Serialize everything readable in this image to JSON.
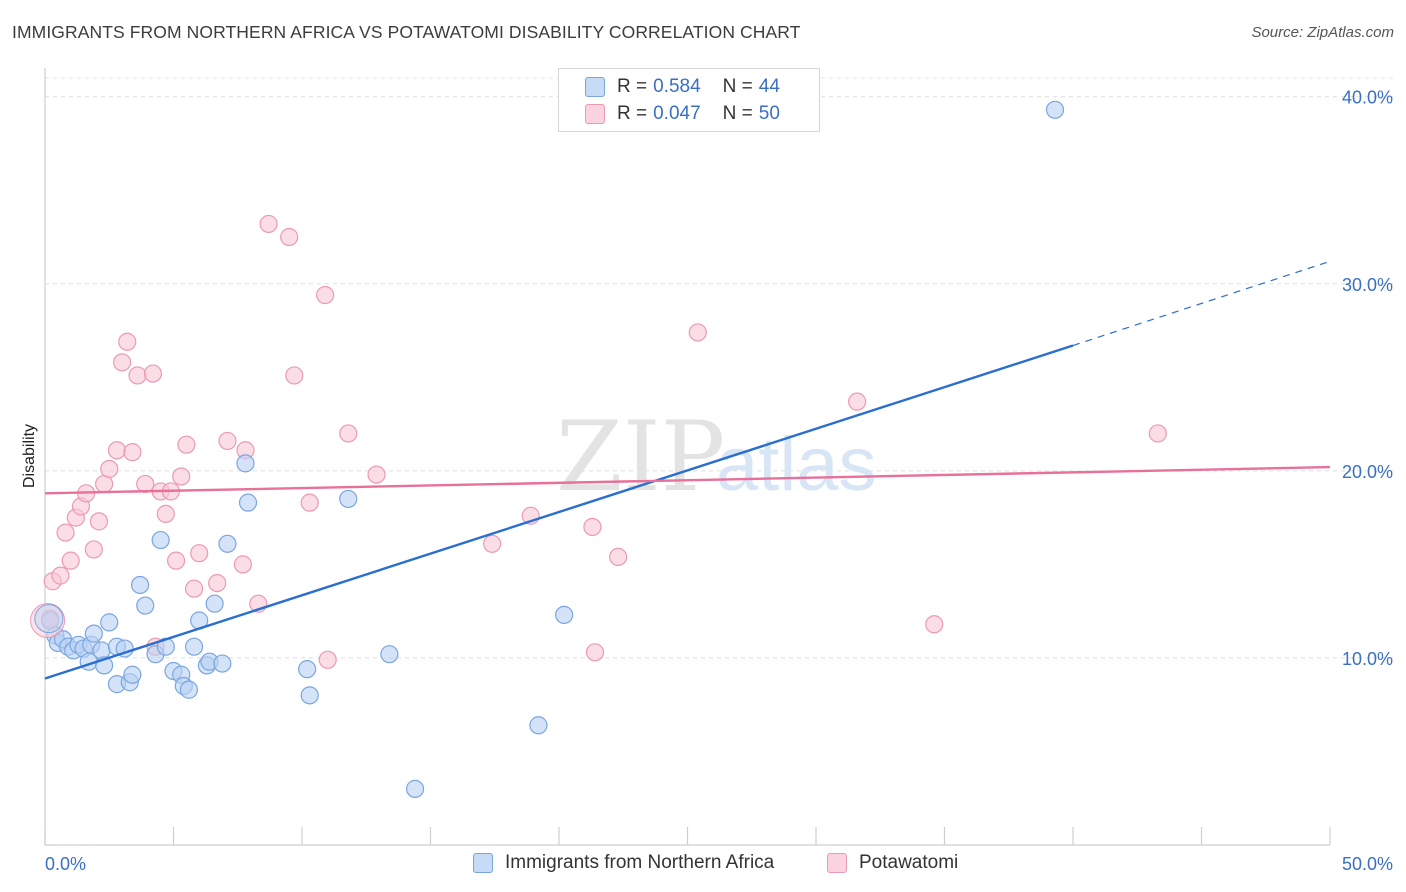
{
  "header": {
    "title": "IMMIGRANTS FROM NORTHERN AFRICA VS POTAWATOMI DISABILITY CORRELATION CHART",
    "source": "Source: ZipAtlas.com"
  },
  "watermark": {
    "zip": "ZIP",
    "atlas": "atlas"
  },
  "legend": {
    "rows": [
      {
        "r_label": "R = ",
        "r_value": "0.584",
        "n_label": "N = ",
        "n_value": "44",
        "color": "#a9c8f2"
      },
      {
        "r_label": "R = ",
        "r_value": "0.047",
        "n_label": "N = ",
        "n_value": "50",
        "color": "#f6b8cb"
      }
    ]
  },
  "colors": {
    "blue_fill": "#b9d2f4",
    "blue_stroke": "#7aa6e0",
    "blue_line": "#2a6ed0",
    "pink_fill": "#f9c8d7",
    "pink_stroke": "#ec9ab4",
    "pink_line": "#e8709a",
    "tick_text": "#3a6fc4"
  },
  "chart_data": {
    "type": "scatter",
    "title": "IMMIGRANTS FROM NORTHERN AFRICA VS POTAWATOMI DISABILITY CORRELATION CHART",
    "xlabel": "",
    "ylabel": "Disability",
    "xlim": [
      0,
      50
    ],
    "ylim": [
      0,
      41
    ],
    "x_tick_labels": [
      "0.0%",
      "50.0%"
    ],
    "y_ticks": [
      10,
      20,
      30,
      40
    ],
    "y_tick_labels": [
      "10.0%",
      "20.0%",
      "30.0%",
      "40.0%"
    ],
    "legend_bottom": [
      "Immigrants from Northern Africa",
      "Potawatomi"
    ],
    "series": [
      {
        "name": "Immigrants from Northern Africa",
        "color": "#a9c8f2",
        "trend": {
          "x": [
            0,
            40
          ],
          "y": [
            8.9,
            26.7
          ],
          "dashed_to": [
            50,
            31.2
          ]
        },
        "points": [
          [
            0.2,
            12.0
          ],
          [
            0.4,
            11.2
          ],
          [
            0.5,
            10.8
          ],
          [
            0.7,
            11.0
          ],
          [
            0.9,
            10.6
          ],
          [
            1.1,
            10.4
          ],
          [
            1.3,
            10.7
          ],
          [
            1.5,
            10.5
          ],
          [
            1.8,
            10.7
          ],
          [
            1.7,
            9.8
          ],
          [
            1.9,
            11.3
          ],
          [
            2.2,
            10.4
          ],
          [
            2.5,
            11.9
          ],
          [
            2.3,
            9.6
          ],
          [
            2.8,
            10.6
          ],
          [
            3.1,
            10.5
          ],
          [
            2.8,
            8.6
          ],
          [
            3.3,
            8.7
          ],
          [
            3.4,
            9.1
          ],
          [
            3.7,
            13.9
          ],
          [
            3.9,
            12.8
          ],
          [
            4.3,
            10.2
          ],
          [
            4.5,
            16.3
          ],
          [
            4.7,
            10.6
          ],
          [
            5.0,
            9.3
          ],
          [
            5.3,
            9.1
          ],
          [
            5.4,
            8.5
          ],
          [
            5.6,
            8.3
          ],
          [
            5.8,
            10.6
          ],
          [
            6.0,
            12.0
          ],
          [
            6.3,
            9.6
          ],
          [
            6.4,
            9.8
          ],
          [
            6.6,
            12.9
          ],
          [
            6.9,
            9.7
          ],
          [
            7.1,
            16.1
          ],
          [
            7.8,
            20.4
          ],
          [
            7.9,
            18.3
          ],
          [
            10.2,
            9.4
          ],
          [
            10.3,
            8.0
          ],
          [
            11.8,
            18.5
          ],
          [
            13.4,
            10.2
          ],
          [
            19.2,
            6.4
          ],
          [
            20.2,
            12.3
          ],
          [
            14.4,
            3.0
          ],
          [
            39.3,
            39.3
          ]
        ]
      },
      {
        "name": "Potawatomi",
        "color": "#f6b8cb",
        "trend": {
          "x": [
            0,
            50
          ],
          "y": [
            18.8,
            20.2
          ]
        },
        "points": [
          [
            0.3,
            14.1
          ],
          [
            0.6,
            14.4
          ],
          [
            0.8,
            16.7
          ],
          [
            1.0,
            15.2
          ],
          [
            1.2,
            17.5
          ],
          [
            1.4,
            18.1
          ],
          [
            1.6,
            18.8
          ],
          [
            1.9,
            15.8
          ],
          [
            2.1,
            17.3
          ],
          [
            2.3,
            19.3
          ],
          [
            2.5,
            20.1
          ],
          [
            2.8,
            21.1
          ],
          [
            3.0,
            25.8
          ],
          [
            3.2,
            26.9
          ],
          [
            3.4,
            21.0
          ],
          [
            3.6,
            25.1
          ],
          [
            3.9,
            19.3
          ],
          [
            4.2,
            25.2
          ],
          [
            4.3,
            10.6
          ],
          [
            4.5,
            18.9
          ],
          [
            4.7,
            17.7
          ],
          [
            4.9,
            18.9
          ],
          [
            5.1,
            15.2
          ],
          [
            5.3,
            19.7
          ],
          [
            5.5,
            21.4
          ],
          [
            5.8,
            13.7
          ],
          [
            6.0,
            15.6
          ],
          [
            6.7,
            14.0
          ],
          [
            7.1,
            21.6
          ],
          [
            7.7,
            15.0
          ],
          [
            7.8,
            21.1
          ],
          [
            8.3,
            12.9
          ],
          [
            8.7,
            33.2
          ],
          [
            9.5,
            32.5
          ],
          [
            9.7,
            25.1
          ],
          [
            10.3,
            18.3
          ],
          [
            11.0,
            9.9
          ],
          [
            10.9,
            29.4
          ],
          [
            11.8,
            22.0
          ],
          [
            12.9,
            19.8
          ],
          [
            17.4,
            16.1
          ],
          [
            18.9,
            17.6
          ],
          [
            21.3,
            17.0
          ],
          [
            21.4,
            10.3
          ],
          [
            22.3,
            15.4
          ],
          [
            25.4,
            27.4
          ],
          [
            31.6,
            23.7
          ],
          [
            34.6,
            11.8
          ],
          [
            43.3,
            22.0
          ],
          [
            0.2,
            12.1
          ]
        ]
      }
    ]
  }
}
